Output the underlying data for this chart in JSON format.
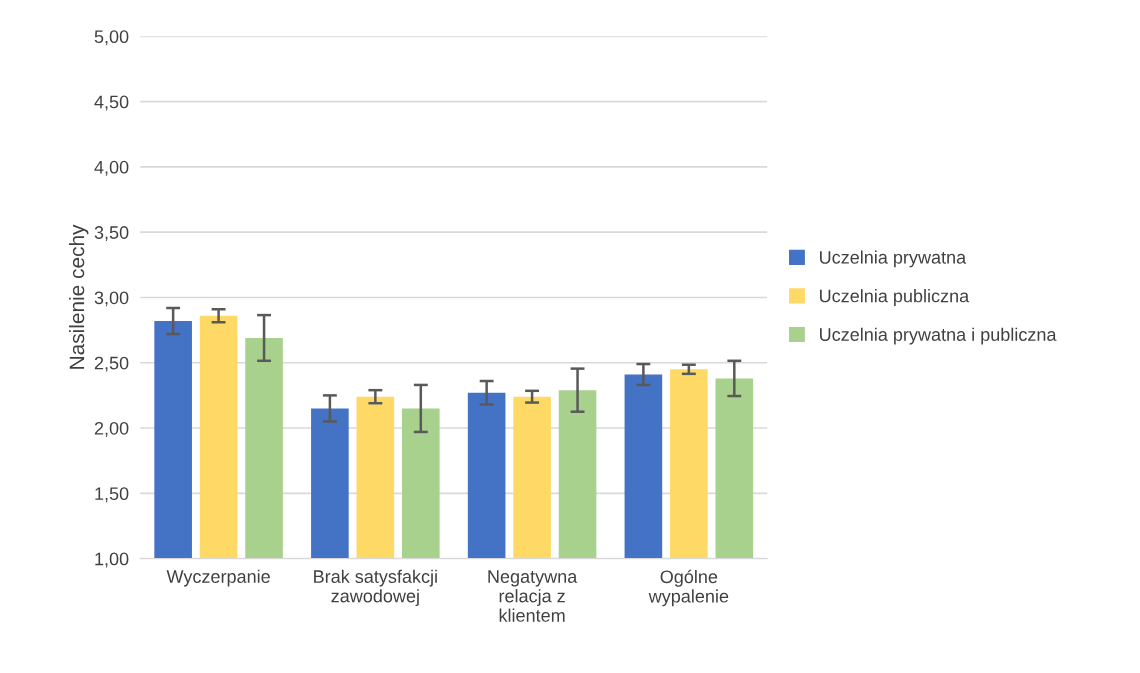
{
  "chart_data": {
    "type": "bar",
    "ylabel": "Nasilenie cechy",
    "categories": [
      "Wyczerpanie",
      "Brak satysfakcji\nzawodowej",
      "Negatywna\nrelacja z\nklientem",
      "Ogólne\nwypalenie"
    ],
    "series": [
      {
        "name": "Uczelnia prywatna",
        "color": "#4472c4",
        "values": [
          2.82,
          2.15,
          2.27,
          2.41
        ],
        "errors": [
          0.1,
          0.1,
          0.09,
          0.08
        ]
      },
      {
        "name": "Uczelnia publiczna",
        "color": "#ffd966",
        "values": [
          2.86,
          2.24,
          2.24,
          2.45
        ],
        "errors": [
          0.05,
          0.05,
          0.045,
          0.035
        ]
      },
      {
        "name": "Uczelnia prywatna i publiczna",
        "color": "#a9d18e",
        "values": [
          2.69,
          2.15,
          2.29,
          2.38
        ],
        "errors": [
          0.175,
          0.18,
          0.165,
          0.135
        ]
      }
    ],
    "ylim": [
      1,
      5
    ],
    "yticks": [
      {
        "value": 1,
        "label": "1,00"
      },
      {
        "value": 1.5,
        "label": "1,50"
      },
      {
        "value": 2,
        "label": "2,00"
      },
      {
        "value": 2.5,
        "label": "2,50"
      },
      {
        "value": 3,
        "label": "3,00"
      },
      {
        "value": 3.5,
        "label": "3,50"
      },
      {
        "value": 4,
        "label": "4,00"
      },
      {
        "value": 4.5,
        "label": "4,50"
      },
      {
        "value": 5,
        "label": "5,00"
      }
    ],
    "grid": "y",
    "legend": "right"
  }
}
